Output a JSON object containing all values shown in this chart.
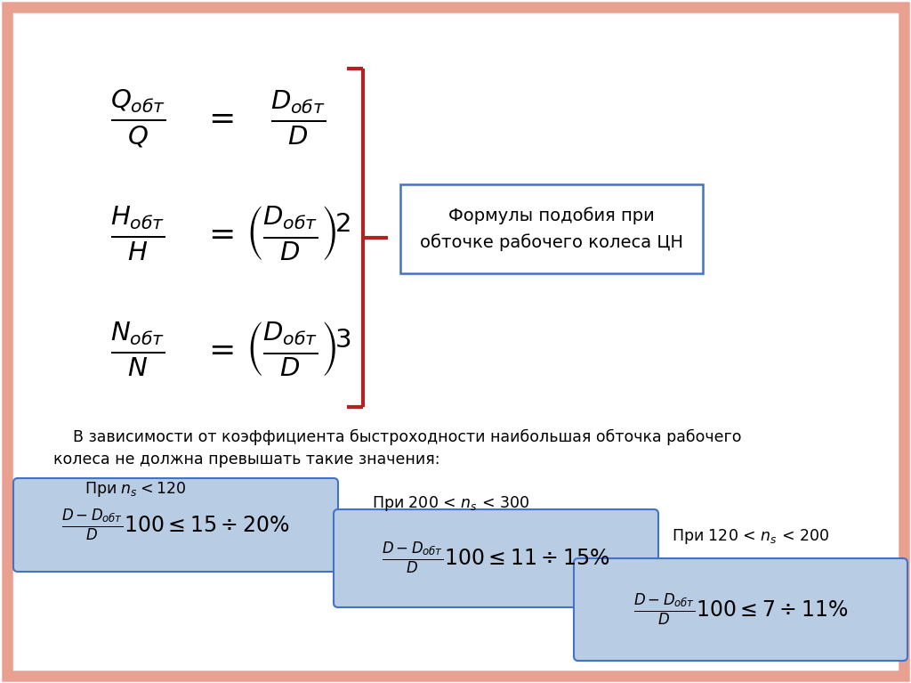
{
  "bg_color": "#ffffff",
  "border_color": "#e8a090",
  "formula_box_color": "#b8cce4",
  "formula_box_edge": "#4472c4",
  "bracket_color": "#b22222",
  "label_box_color": "#ffffff",
  "label_box_edge": "#4472c4",
  "label_text": "Формулы подобия при\nобточке рабочего колеса ЦН",
  "para_text_line1": "    В зависимости от коэффициента быстроходности наибольшая обточка рабочего",
  "para_text_line2": "колеса не должна превышать такие значения:"
}
